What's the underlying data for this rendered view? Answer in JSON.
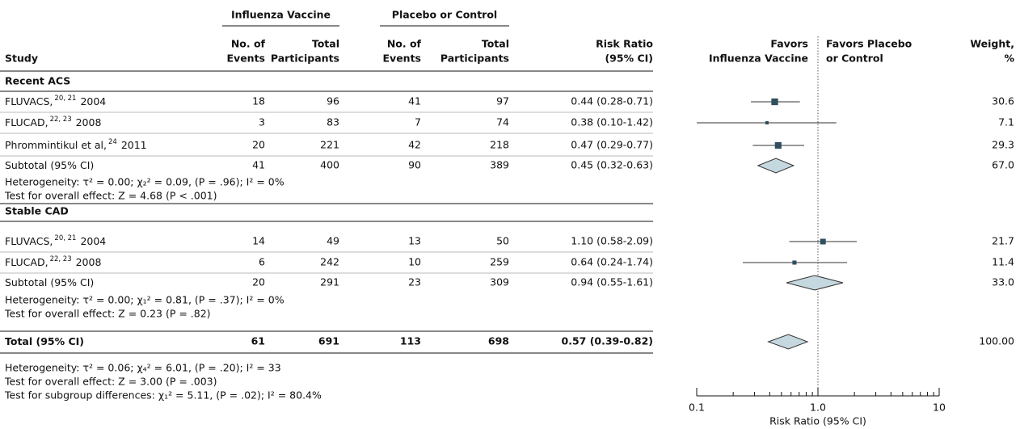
{
  "table": {
    "groups": [
      "Influenza Vaccine",
      "Placebo or Control"
    ],
    "columns": [
      [
        "Study"
      ],
      [
        "No. of",
        "Events"
      ],
      [
        "Total",
        "Participants"
      ],
      [
        "No. of",
        "Events"
      ],
      [
        "Total",
        "Participants"
      ],
      [
        "Risk Ratio",
        "(95% CI)"
      ]
    ],
    "weight_header": [
      "Weight,",
      "%"
    ],
    "sections": [
      {
        "title": "Recent ACS",
        "rows": [
          {
            "study": "FLUVACS,",
            "ref": "20, 21",
            "year": "2004",
            "ev1": 18,
            "n1": 96,
            "ev2": 41,
            "n2": 97,
            "rr_label": "0.44 (0.28-0.71)",
            "weight": 30.6
          },
          {
            "study": "FLUCAD,",
            "ref": "22, 23",
            "year": "2008",
            "ev1": 3,
            "n1": 83,
            "ev2": 7,
            "n2": 74,
            "rr_label": "0.38 (0.10-1.42)",
            "weight": 7.1
          },
          {
            "study": "Phrommintikul et al,",
            "ref": "24",
            "year": "2011",
            "ev1": 20,
            "n1": 221,
            "ev2": 42,
            "n2": 218,
            "rr_label": "0.47 (0.29-0.77)",
            "weight": 29.3
          }
        ],
        "subtotal": {
          "study": "Subtotal (95% CI)",
          "ev1": 41,
          "n1": 400,
          "ev2": 90,
          "n2": 389,
          "rr_label": "0.45 (0.32-0.63)",
          "weight": 67,
          "weight_label": "67.0"
        },
        "notes": [
          "Heterogeneity: τ² = 0.00; χ₂² = 0.09, (P = .96); I² = 0%",
          "Test for overall effect: Z = 4.68 (P < .001)"
        ]
      },
      {
        "title": "Stable CAD",
        "rows": [
          {
            "study": "FLUVACS,",
            "ref": "20, 21",
            "year": "2004",
            "ev1": 14,
            "n1": 49,
            "ev2": 13,
            "n2": 50,
            "rr_label": "1.10 (0.58-2.09)",
            "weight": 21.7
          },
          {
            "study": "FLUCAD,",
            "ref": "22, 23",
            "year": "2008",
            "ev1": 6,
            "n1": 242,
            "ev2": 10,
            "n2": 259,
            "rr_label": "0.64 (0.24-1.74)",
            "weight": 11.4
          }
        ],
        "subtotal": {
          "study": "Subtotal (95% CI)",
          "ev1": 20,
          "n1": 291,
          "ev2": 23,
          "n2": 309,
          "rr_label": "0.94 (0.55-1.61)",
          "weight": 33,
          "weight_label": "33.0"
        },
        "notes": [
          "Heterogeneity: τ² = 0.00; χ₁² = 0.81, (P = .37); I² = 0%",
          "Test for overall effect: Z = 0.23 (P = .82)"
        ]
      }
    ],
    "total": {
      "study": "Total (95% CI)",
      "ev1": 61,
      "n1": 691,
      "ev2": 113,
      "n2": 698,
      "rr_label": "0.57 (0.39-0.82)",
      "weight": 100,
      "weight_label": "100.00"
    },
    "notes": [
      "Heterogeneity: τ² = 0.06; χ₄² = 6.01, (P = .20); I² = 33",
      "Test for overall effect: Z = 3.00 (P = .003)",
      "Test for subgroup differences: χ₁² = 5.11, (P = .02); I² = 80.4%"
    ]
  },
  "chart_data": {
    "type": "forest",
    "xlabel": "Risk Ratio (95% CI)",
    "log_x": true,
    "favors_left": [
      "Favors",
      "Influenza Vaccine"
    ],
    "favors_right": [
      "Favors Placebo",
      "or Control"
    ],
    "xlim": [
      0.1,
      10
    ],
    "xticks": [
      {
        "value": 0.1,
        "label": "0.1"
      },
      {
        "value": 1,
        "label": "1.0"
      },
      10
    ],
    "xminorticks": [
      0.2,
      0.3,
      0.4,
      0.5,
      0.6,
      0.7,
      0.8,
      0.9,
      2,
      3,
      4,
      5,
      6,
      7,
      8,
      9
    ],
    "marker_color": "#2f4f5f",
    "diamond_color": "#c5d8e0",
    "sections": [
      {
        "rows": [
          {
            "rr": 0.44,
            "lo": 0.28,
            "hi": 0.71
          },
          {
            "rr": 0.38,
            "lo": 0.1,
            "hi": 1.42
          },
          {
            "rr": 0.47,
            "lo": 0.29,
            "hi": 0.77
          }
        ],
        "subtotal": {
          "rr": 0.45,
          "lo": 0.32,
          "hi": 0.63
        }
      },
      {
        "rows": [
          {
            "rr": 1.1,
            "lo": 0.58,
            "hi": 2.09
          },
          {
            "rr": 0.64,
            "lo": 0.24,
            "hi": 1.74
          }
        ],
        "subtotal": {
          "rr": 0.94,
          "lo": 0.55,
          "hi": 1.61
        }
      }
    ],
    "total": {
      "rr": 0.57,
      "lo": 0.39,
      "hi": 0.82
    }
  }
}
